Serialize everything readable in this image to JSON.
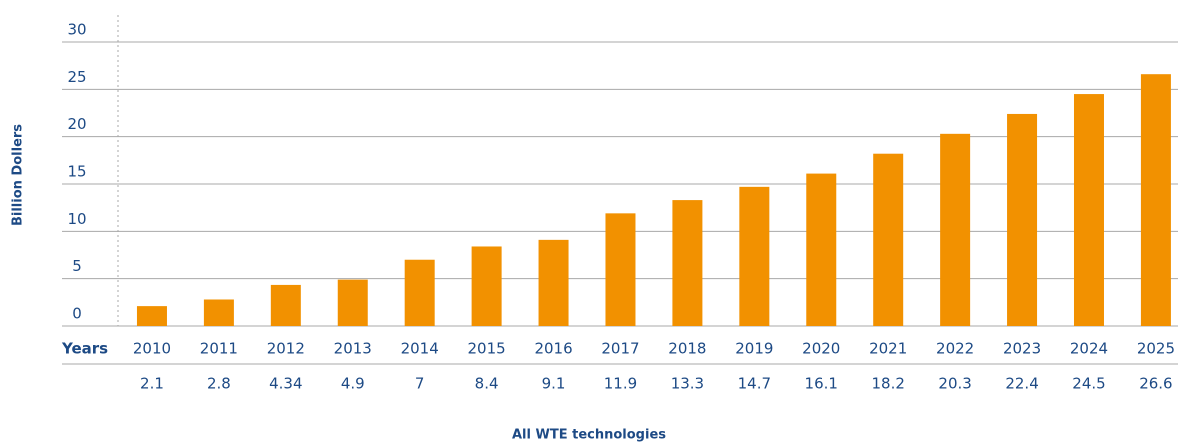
{
  "chart_data": {
    "type": "bar",
    "y_label": "Billion Dollers",
    "row_label": "Years",
    "x_label": "All WTE technologies",
    "categories": [
      "2010",
      "2011",
      "2012",
      "2013",
      "2014",
      "2015",
      "2016",
      "2017",
      "2018",
      "2019",
      "2020",
      "2021",
      "2022",
      "2023",
      "2024",
      "2025"
    ],
    "values": [
      2.1,
      2.8,
      4.34,
      4.9,
      7,
      8.4,
      9.1,
      11.9,
      13.3,
      14.7,
      16.1,
      18.2,
      20.3,
      22.4,
      24.5,
      26.6
    ],
    "color": "#f29100",
    "ylim": [
      0,
      30
    ],
    "yticks": [
      0,
      5,
      10,
      15,
      20,
      25,
      30
    ],
    "grid": true
  }
}
